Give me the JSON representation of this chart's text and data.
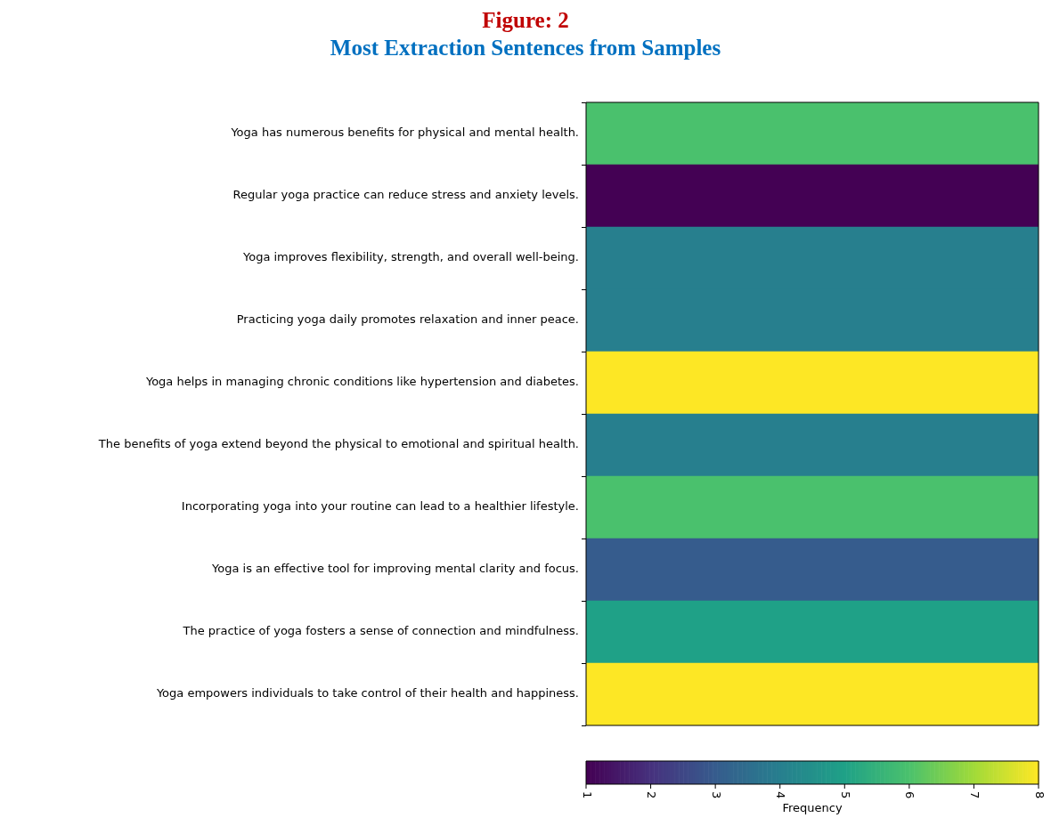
{
  "chart_data": {
    "type": "heatmap",
    "title": "Figure: 2",
    "subtitle": "Most Extraction Sentences from Samples",
    "categories": [
      null
    ],
    "y_categories": [
      "Yoga has numerous benefits for physical and mental health.",
      "Regular yoga practice can reduce stress and anxiety levels.",
      "Yoga improves flexibility, strength, and overall well-being.",
      "Practicing yoga daily promotes relaxation and inner peace.",
      "Yoga helps in managing chronic conditions like hypertension and diabetes.",
      "The benefits of yoga extend beyond the physical to emotional and spiritual health.",
      "Incorporating yoga into your routine can lead to a healthier lifestyle.",
      "Yoga is an effective tool for improving mental clarity and focus.",
      "The practice of yoga fosters a sense of connection and mindfulness.",
      "Yoga empowers individuals to take control of their health and happiness."
    ],
    "cells": [
      [
        6
      ],
      [
        1
      ],
      [
        4
      ],
      [
        4
      ],
      [
        8
      ],
      [
        4
      ],
      [
        6
      ],
      [
        3
      ],
      [
        5
      ],
      [
        8
      ]
    ],
    "clim": [
      1,
      8
    ],
    "cticks": [
      1,
      2,
      3,
      4,
      5,
      6,
      7,
      8
    ],
    "clabel": "Frequency",
    "tick_labels": "y"
  }
}
